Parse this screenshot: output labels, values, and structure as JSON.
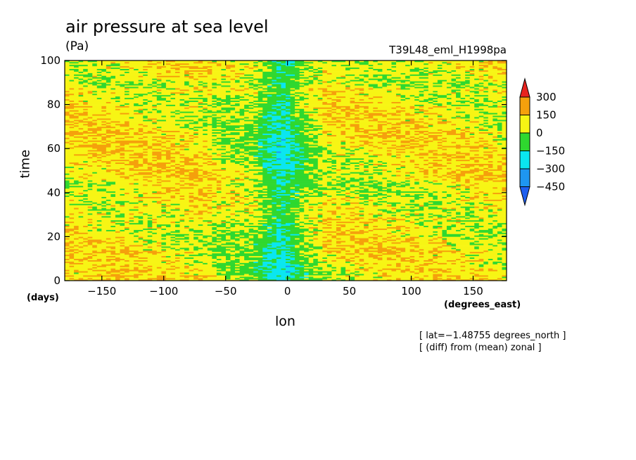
{
  "chart_data": {
    "type": "heatmap",
    "title": "air pressure at sea level",
    "units": "(Pa)",
    "run_label": "T39L48_eml_H1998pa",
    "xlabel": "lon",
    "x_unit": "(degrees_east)",
    "ylabel": "time",
    "y_unit": "(days)",
    "xlim": [
      -180,
      177
    ],
    "ylim": [
      0,
      100
    ],
    "x_ticks": [
      -150,
      -100,
      -50,
      0,
      50,
      100,
      150
    ],
    "x_tick_labels": [
      "−150",
      "−100",
      "−50",
      "0",
      "50",
      "100",
      "150"
    ],
    "y_ticks": [
      0,
      20,
      40,
      60,
      80,
      100
    ],
    "y_tick_labels": [
      "0",
      "20",
      "40",
      "60",
      "80",
      "100"
    ],
    "colorbar": {
      "levels": [
        300,
        150,
        0,
        -150,
        -300,
        -450
      ],
      "level_labels": [
        "300",
        "150",
        "0",
        "−150",
        "−300",
        "−450"
      ],
      "colors": [
        "#e8231e",
        "#f5a00c",
        "#f7f514",
        "#2fd82f",
        "#0ae6f0",
        "#1e96f0",
        "#1e5ff0"
      ],
      "bins": [
        "> 300",
        "150 to 300",
        "0 to 150",
        "-150 to 0",
        "-300 to -150",
        "-450 to -300",
        "< -450"
      ]
    },
    "annotations": [
      "[ lat=−1.48755 degrees_north ]",
      "[ (diff) from (mean) zonal ]"
    ],
    "features": [
      {
        "type": "low_anomaly_band",
        "lon_center": -5,
        "lon_halfwidth": 20,
        "time_range": [
          0,
          100
        ],
        "typical_value": -200
      },
      {
        "type": "high_anomaly_region",
        "lon_range": [
          -180,
          -60
        ],
        "time_range": [
          0,
          100
        ],
        "typical_value": 100
      },
      {
        "type": "high_anomaly_region",
        "lon_range": [
          30,
          177
        ],
        "time_range": [
          0,
          100
        ],
        "typical_value": 80
      }
    ]
  }
}
